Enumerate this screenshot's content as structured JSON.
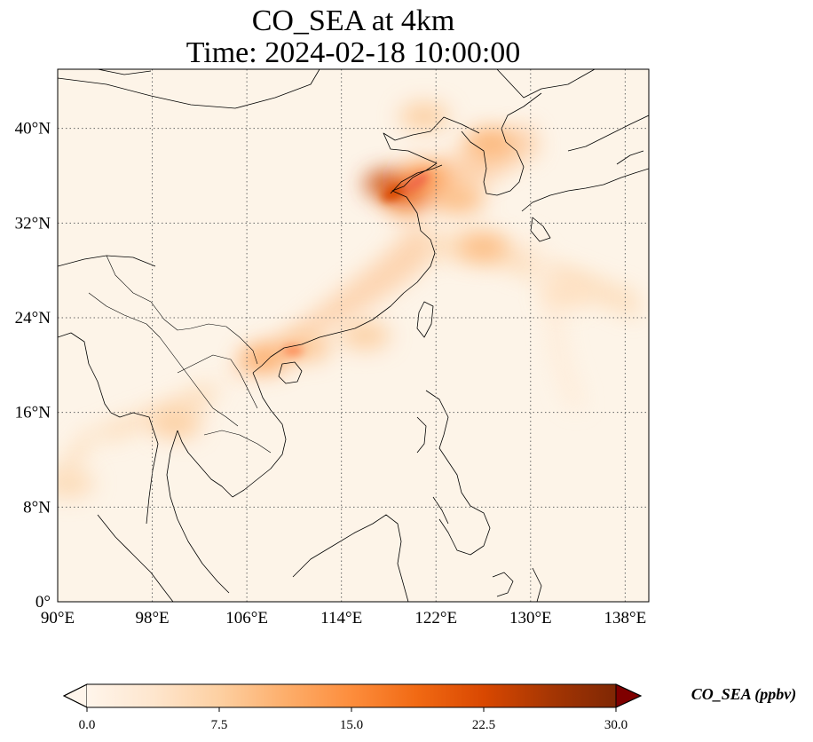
{
  "title": {
    "line1": "CO_SEA at 4km",
    "line2": "Time: 2024-02-18 10:00:00"
  },
  "map": {
    "lon_range": [
      90,
      140
    ],
    "lat_range": [
      0,
      45
    ],
    "lon_ticks": [
      {
        "value": 90,
        "label": "90°E"
      },
      {
        "value": 98,
        "label": "98°E"
      },
      {
        "value": 106,
        "label": "106°E"
      },
      {
        "value": 114,
        "label": "114°E"
      },
      {
        "value": 122,
        "label": "122°E"
      },
      {
        "value": 130,
        "label": "130°E"
      },
      {
        "value": 138,
        "label": "138°E"
      }
    ],
    "lat_ticks": [
      {
        "value": 0,
        "label": "0°"
      },
      {
        "value": 8,
        "label": "8°N"
      },
      {
        "value": 16,
        "label": "16°N"
      },
      {
        "value": 24,
        "label": "24°N"
      },
      {
        "value": 32,
        "label": "32°N"
      },
      {
        "value": 40,
        "label": "40°N"
      }
    ],
    "gridlines": true,
    "background_color": "#fdf4e8",
    "plumes": [
      {
        "lon": 118.0,
        "lat": 35.3,
        "value": 24
      },
      {
        "lon": 119.5,
        "lat": 34.5,
        "value": 20
      },
      {
        "lon": 121.0,
        "lat": 36.0,
        "value": 14
      },
      {
        "lon": 124.0,
        "lat": 34.0,
        "value": 10
      },
      {
        "lon": 126.5,
        "lat": 38.8,
        "value": 11
      },
      {
        "lon": 126.0,
        "lat": 30.0,
        "value": 10
      },
      {
        "lon": 121.0,
        "lat": 41.0,
        "value": 8
      },
      {
        "lon": 116.0,
        "lat": 22.5,
        "value": 8
      },
      {
        "lon": 111.0,
        "lat": 21.5,
        "value": 9
      },
      {
        "lon": 107.5,
        "lat": 20.5,
        "value": 12
      },
      {
        "lon": 100.0,
        "lat": 15.0,
        "value": 8
      },
      {
        "lon": 91.0,
        "lat": 10.0,
        "value": 6
      },
      {
        "lon": 133.0,
        "lat": 26.0,
        "value": 5
      }
    ]
  },
  "colorbar": {
    "label": "CO_SEA (ppbv)",
    "min": 0,
    "max": 30,
    "ticks": [
      {
        "value": 0,
        "label": "0.0"
      },
      {
        "value": 7.5,
        "label": "7.5"
      },
      {
        "value": 15,
        "label": "15.0"
      },
      {
        "value": 22.5,
        "label": "22.5"
      },
      {
        "value": 30,
        "label": "30.0"
      }
    ],
    "colors": [
      "#fff5eb",
      "#fee6ce",
      "#fdd0a2",
      "#fdae6b",
      "#fd8d3c",
      "#f16913",
      "#d94801",
      "#a63603",
      "#7f2704"
    ],
    "under_color": "#fff5eb",
    "over_color": "#7f0000",
    "extend": "both"
  }
}
